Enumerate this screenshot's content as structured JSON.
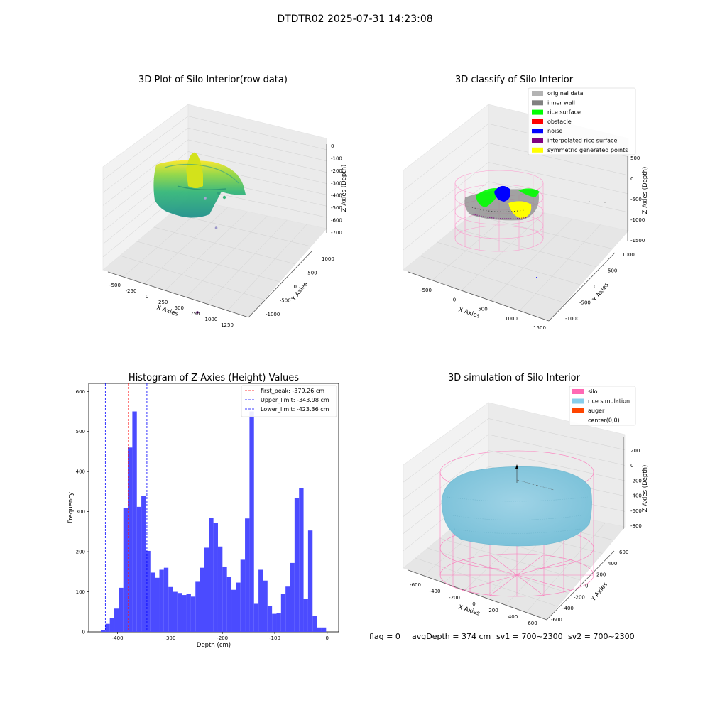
{
  "figure": {
    "suptitle": "DTDTR02 2025-07-31 14:23:08",
    "footer": {
      "flag": "flag = 0",
      "avg": "avgDepth = 374 cm",
      "sv1": "sv1 = 700~2300",
      "sv2": "sv2 = 700~2300"
    }
  },
  "chart_data": [
    {
      "type": "scatter",
      "projection": "3d",
      "title": "3D Plot of Silo Interior(row data)",
      "xlabel": "X Axies",
      "ylabel": "Y Axies",
      "zlabel": "Z Axies (Depth)",
      "xticks": [
        "-500",
        "-250",
        "0",
        "250",
        "500",
        "750",
        "1000",
        "1250"
      ],
      "yticks": [
        "-1000",
        "-500",
        "0",
        "500",
        "1000"
      ],
      "zticks": [
        "0",
        "-100",
        "-200",
        "-300",
        "-400",
        "-500",
        "-600",
        "-700"
      ],
      "colormap": "viridis",
      "outliers": [
        {
          "x": 1050,
          "y": -300,
          "z": -620,
          "color": "#a9a5d3"
        },
        {
          "x": 1300,
          "y": -500,
          "z": -650,
          "color": "#9c98c9"
        },
        {
          "x": 1200,
          "y": -1000,
          "z": -780,
          "color": "#440154"
        }
      ]
    },
    {
      "type": "scatter",
      "projection": "3d",
      "title": "3D classify of Silo Interior",
      "xlabel": "X Axies",
      "ylabel": "Y Axies",
      "zlabel": "Z Axies (Depth)",
      "xticks": [
        "-500",
        "0",
        "500",
        "1000",
        "1500"
      ],
      "yticks": [
        "-1000",
        "-500",
        "0",
        "500",
        "1000"
      ],
      "zticks": [
        "500",
        "0",
        "-500",
        "-1000",
        "-1500"
      ],
      "legend": [
        {
          "label": "original data",
          "color": "#b3b3b3"
        },
        {
          "label": "inner wall",
          "color": "#808080"
        },
        {
          "label": "rice surface",
          "color": "#00ff00"
        },
        {
          "label": "obstacle",
          "color": "#ff0000"
        },
        {
          "label": "noise",
          "color": "#0000ff"
        },
        {
          "label": "interpolated rice surface",
          "color": "#800080"
        },
        {
          "label": "symmetric generated points",
          "color": "#ffff00"
        }
      ],
      "legend_loc": "upper right"
    },
    {
      "type": "bar",
      "title": "Histogram of Z-Axies (Height) Values",
      "xlabel": "Depth (cm)",
      "ylabel": "Frequency",
      "xlim": [
        -455,
        22
      ],
      "ylim": [
        0,
        620
      ],
      "xticks": [
        -400,
        -300,
        -200,
        -100,
        0
      ],
      "yticks": [
        0,
        100,
        200,
        300,
        400,
        500,
        600
      ],
      "bin_start": -432,
      "bin_width": 8.6,
      "values": [
        5,
        20,
        35,
        58,
        110,
        310,
        460,
        550,
        312,
        340,
        202,
        148,
        135,
        155,
        160,
        112,
        100,
        97,
        92,
        95,
        88,
        125,
        160,
        210,
        285,
        272,
        213,
        163,
        138,
        105,
        123,
        180,
        283,
        550,
        70,
        155,
        128,
        65,
        45,
        46,
        95,
        113,
        172,
        333,
        358,
        82,
        253,
        40,
        11,
        11
      ],
      "bar_color": "#4b4bff",
      "vlines": [
        {
          "label": "first_peak: -379.26 cm",
          "x": -379.26,
          "color": "#ff0000"
        },
        {
          "label": "Upper_limit: -343.98 cm",
          "x": -343.98,
          "color": "#0000ff"
        },
        {
          "label": "Lower_limit: -423.36 cm",
          "x": -423.36,
          "color": "#0000ff"
        }
      ],
      "legend_loc": "upper right"
    },
    {
      "type": "surface",
      "projection": "3d",
      "title": "3D simulation of Silo Interior",
      "xlabel": "X Axies",
      "ylabel": "Y Axies",
      "zlabel": "Z Axies (Depth)",
      "xticks": [
        "-600",
        "-400",
        "-200",
        "0",
        "200",
        "400",
        "600"
      ],
      "yticks": [
        "-600",
        "-400",
        "-200",
        "0",
        "200",
        "400",
        "600"
      ],
      "zticks": [
        "200",
        "0",
        "-200",
        "-400",
        "-600",
        "-800"
      ],
      "legend": [
        {
          "label": "silo",
          "color": "#ff69b4"
        },
        {
          "label": "rice simulation",
          "color": "#87ceeb"
        },
        {
          "label": "auger",
          "color": "#ff4500"
        },
        {
          "label": "center(0,0)",
          "color": "#ffffff"
        }
      ],
      "legend_loc": "upper right"
    }
  ]
}
